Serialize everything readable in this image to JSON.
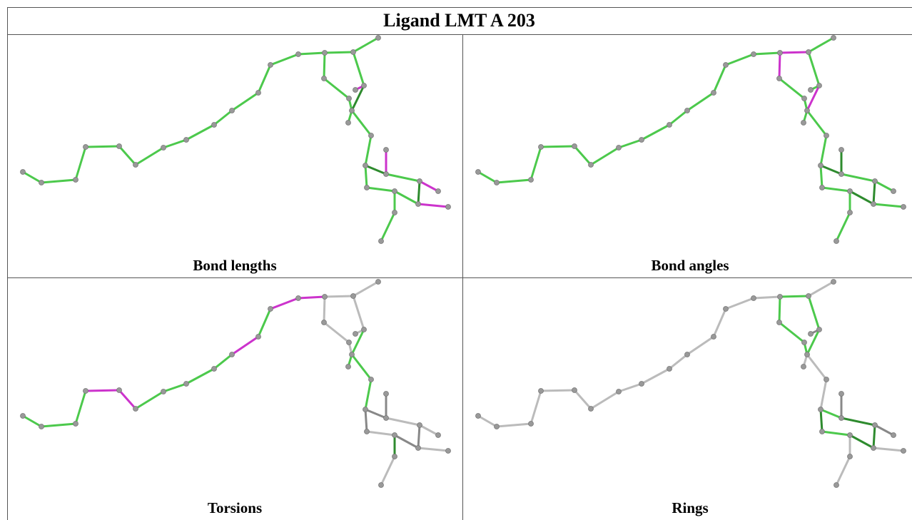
{
  "title": "Ligand LMT A 203",
  "panels": [
    {
      "caption": "Bond lengths"
    },
    {
      "caption": "Bond angles"
    },
    {
      "caption": "Torsions"
    },
    {
      "caption": "Rings"
    }
  ]
}
